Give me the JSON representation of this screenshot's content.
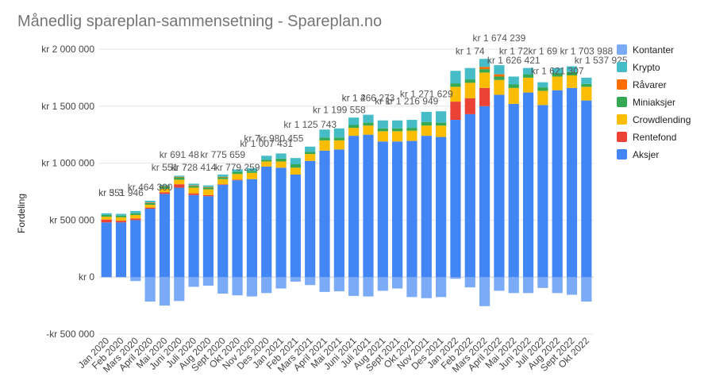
{
  "chart_data": {
    "type": "bar",
    "stacked": true,
    "title": "Månedlig spareplan-sammensetning - Spareplan.no",
    "xlabel": "",
    "ylabel": "Fordeling",
    "ylim": [
      -500000,
      2000000
    ],
    "y_ticks": [
      {
        "value": 2000000,
        "label": "kr 2 000 000"
      },
      {
        "value": 1500000,
        "label": "kr 1 500 000"
      },
      {
        "value": 1000000,
        "label": "kr 1 000 000"
      },
      {
        "value": 500000,
        "label": "kr 500 000"
      },
      {
        "value": 0,
        "label": "kr 0"
      },
      {
        "value": -500000,
        "label": "-kr 500 000"
      }
    ],
    "grid": true,
    "legend_position": "right",
    "categories": [
      "Jan 2020",
      "Feb 2020",
      "Mars 2020",
      "April 2020",
      "Mai 2020",
      "Juni 2020",
      "Juli 2020",
      "Aug 2020",
      "Sept 2020",
      "Okt 2020",
      "Nov 2020",
      "Des 2020",
      "Jan 2021",
      "Feb 2021",
      "Mars 2021",
      "April 2021",
      "Mai 2021",
      "Juni 2021",
      "Juli 2021",
      "Aug 2021",
      "Sept 2021",
      "Okt 2021",
      "Nov 2021",
      "Des 2021",
      "Jan 2022",
      "Feb 2022",
      "Mars 2022",
      "April 2022",
      "Mai 2022",
      "Juni 2022",
      "Juli 2022",
      "Aug 2022",
      "Sept 2022",
      "Okt 2022"
    ],
    "series": [
      {
        "name": "Kontanter",
        "color": "#7baaf7",
        "values": [
          0,
          0,
          -35000,
          -215000,
          -250000,
          -210000,
          -85000,
          -75000,
          -145000,
          -160000,
          -170000,
          -140000,
          -100000,
          -40000,
          -70000,
          -130000,
          -125000,
          -165000,
          -170000,
          -120000,
          -100000,
          -175000,
          -185000,
          -175000,
          -15000,
          -90000,
          -255000,
          -120000,
          -140000,
          -140000,
          -95000,
          -140000,
          -155000,
          -215000
        ]
      },
      {
        "name": "Aksjer",
        "color": "#4285f4",
        "values": [
          480000,
          480000,
          500000,
          600000,
          730000,
          785000,
          720000,
          710000,
          810000,
          850000,
          860000,
          970000,
          960000,
          900000,
          1020000,
          1110000,
          1120000,
          1240000,
          1250000,
          1190000,
          1190000,
          1195000,
          1240000,
          1230000,
          1380000,
          1430000,
          1500000,
          1600000,
          1520000,
          1620000,
          1510000,
          1640000,
          1660000,
          1550000
        ]
      },
      {
        "name": "Rentefond",
        "color": "#ea4335",
        "values": [
          25000,
          15000,
          15000,
          10000,
          15000,
          30000,
          15000,
          10000,
          5000,
          5000,
          0,
          0,
          0,
          0,
          0,
          0,
          0,
          0,
          0,
          0,
          0,
          0,
          0,
          0,
          160000,
          140000,
          160000,
          0,
          0,
          0,
          0,
          0,
          0,
          0
        ]
      },
      {
        "name": "Crowdlending",
        "color": "#fbbc04",
        "values": [
          25000,
          30000,
          30000,
          25000,
          30000,
          40000,
          50000,
          50000,
          45000,
          50000,
          55000,
          45000,
          55000,
          60000,
          60000,
          90000,
          80000,
          70000,
          80000,
          90000,
          90000,
          90000,
          90000,
          100000,
          130000,
          135000,
          135000,
          130000,
          140000,
          130000,
          125000,
          120000,
          110000,
          120000
        ]
      },
      {
        "name": "Miniaksjer",
        "color": "#34a853",
        "values": [
          15000,
          15000,
          15000,
          15000,
          20000,
          20000,
          15000,
          15000,
          15000,
          20000,
          15000,
          15000,
          25000,
          30000,
          20000,
          25000,
          25000,
          25000,
          25000,
          25000,
          25000,
          25000,
          30000,
          25000,
          30000,
          30000,
          30000,
          30000,
          30000,
          30000,
          30000,
          30000,
          30000,
          25000
        ]
      },
      {
        "name": "Råvarer",
        "color": "#ff6d01",
        "values": [
          0,
          0,
          0,
          5000,
          5000,
          5000,
          5000,
          5000,
          5000,
          0,
          0,
          0,
          0,
          0,
          0,
          0,
          0,
          0,
          0,
          0,
          0,
          0,
          0,
          0,
          0,
          0,
          20000,
          20000,
          0,
          0,
          0,
          0,
          0,
          0
        ]
      },
      {
        "name": "Krypto",
        "color": "#46bdc6",
        "values": [
          15000,
          15000,
          20000,
          15000,
          10000,
          10000,
          15000,
          15000,
          20000,
          20000,
          25000,
          35000,
          45000,
          55000,
          45000,
          70000,
          80000,
          65000,
          70000,
          70000,
          70000,
          70000,
          90000,
          100000,
          110000,
          100000,
          70000,
          80000,
          70000,
          55000,
          45000,
          45000,
          50000,
          55000
        ]
      }
    ],
    "data_labels": [
      {
        "index": 0,
        "y": 710000,
        "text": "kr 3"
      },
      {
        "index": 0,
        "y": 710000,
        "dx": 18,
        "text": "3"
      },
      {
        "index": 1,
        "y": 710000,
        "text": "kr 551 946"
      },
      {
        "index": 3,
        "y": 760000,
        "text": "kr 464 300"
      },
      {
        "index": 4,
        "y": 935000,
        "text": "kr 551"
      },
      {
        "index": 5,
        "y": 935000,
        "text": "kr 7"
      },
      {
        "index": 6,
        "y": 935000,
        "text": "kr 728 414"
      },
      {
        "index": 5,
        "y": 1045000,
        "text": "kr 691 48"
      },
      {
        "index": 8,
        "y": 1045000,
        "text": "kr 775 659"
      },
      {
        "index": 9,
        "y": 935000,
        "text": "kr 779 259"
      },
      {
        "index": 10,
        "y": 1190000,
        "text": "kr 7"
      },
      {
        "index": 12,
        "y": 1190000,
        "text": "kr 980 455"
      },
      {
        "index": 11,
        "y": 1145000,
        "text": "kr 1 007 431"
      },
      {
        "index": 14,
        "y": 1310000,
        "text": "kr 1 125 743"
      },
      {
        "index": 16,
        "y": 1440000,
        "text": "kr 1 199 558"
      },
      {
        "index": 17,
        "y": 1545000,
        "text": "kr 1 4"
      },
      {
        "index": 18,
        "y": 1545000,
        "text": "kr 1 266 273"
      },
      {
        "index": 19,
        "y": 1515000,
        "text": "kr 1"
      },
      {
        "index": 21,
        "y": 1515000,
        "text": "kr 1 216 949"
      },
      {
        "index": 22,
        "y": 1580000,
        "text": "kr 1 271 629"
      },
      {
        "index": 25,
        "y": 1955000,
        "text": "kr 1 74"
      },
      {
        "index": 27,
        "y": 2070000,
        "text": "kr 1 674 239"
      },
      {
        "index": 28,
        "y": 1955000,
        "text": "kr 1 72"
      },
      {
        "index": 30,
        "y": 1955000,
        "text": "kr 1 69"
      },
      {
        "index": 28,
        "y": 1875000,
        "text": "kr 1 626 421"
      },
      {
        "index": 31,
        "y": 1780000,
        "text": "kr 1 621 307"
      },
      {
        "index": 33,
        "y": 1955000,
        "text": "kr 1 703 988"
      },
      {
        "index": 34,
        "y": 1875000,
        "text": "kr 1 537 925"
      }
    ]
  },
  "legend": [
    {
      "name": "Kontanter",
      "color": "#7baaf7"
    },
    {
      "name": "Krypto",
      "color": "#46bdc6"
    },
    {
      "name": "Råvarer",
      "color": "#ff6d01"
    },
    {
      "name": "Miniaksjer",
      "color": "#34a853"
    },
    {
      "name": "Crowdlending",
      "color": "#fbbc04"
    },
    {
      "name": "Rentefond",
      "color": "#ea4335"
    },
    {
      "name": "Aksjer",
      "color": "#4285f4"
    }
  ]
}
